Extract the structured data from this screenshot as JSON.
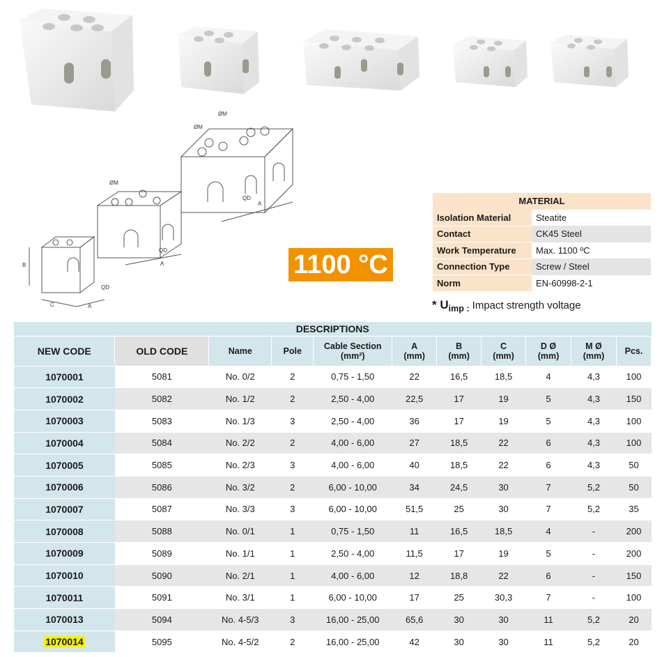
{
  "temperature_badge": "1100 °C",
  "diagram_labels": {
    "m": "ØM",
    "b": "B",
    "c": "C",
    "a": "A",
    "qd": "QD"
  },
  "material": {
    "title": "MATERIAL",
    "rows": [
      {
        "k": "Isolation Material",
        "v": "Steatite"
      },
      {
        "k": "Contact",
        "v": "CK45 Steel"
      },
      {
        "k": "Work Temperature",
        "v": "Max. 1100 ºC"
      },
      {
        "k": "Connection Type",
        "v": "Screw / Steel"
      },
      {
        "k": "Norm",
        "v": "EN-60998-2-1"
      }
    ]
  },
  "note": {
    "star": "* U",
    "sub": "imp :",
    "text": " Impact strength voltage"
  },
  "table": {
    "title": "DESCRIPTIONS",
    "headers": [
      "NEW CODE",
      "OLD CODE",
      "Name",
      "Pole",
      "Cable Section",
      "A",
      "B",
      "C",
      "D Ø",
      "M Ø",
      "Pcs."
    ],
    "subheaders": [
      "",
      "",
      "",
      "",
      "(mm²)",
      "(mm)",
      "(mm)",
      "(mm)",
      "(mm)",
      "(mm)",
      ""
    ],
    "highlight_color": "#f4f20a",
    "rows": [
      [
        "1070001",
        "5081",
        "No. 0/2",
        "2",
        "0,75 - 1,50",
        "22",
        "16,5",
        "18,5",
        "4",
        "4,3",
        "100"
      ],
      [
        "1070002",
        "5082",
        "No. 1/2",
        "2",
        "2,50 - 4,00",
        "22,5",
        "17",
        "19",
        "5",
        "4,3",
        "150"
      ],
      [
        "1070003",
        "5083",
        "No. 1/3",
        "3",
        "2,50 - 4,00",
        "36",
        "17",
        "19",
        "5",
        "4,3",
        "100"
      ],
      [
        "1070004",
        "5084",
        "No. 2/2",
        "2",
        "4,00 - 6,00",
        "27",
        "18,5",
        "22",
        "6",
        "4,3",
        "100"
      ],
      [
        "1070005",
        "5085",
        "No. 2/3",
        "3",
        "4,00 - 6,00",
        "40",
        "18,5",
        "22",
        "6",
        "4,3",
        "50"
      ],
      [
        "1070006",
        "5086",
        "No. 3/2",
        "2",
        "6,00 - 10,00",
        "34",
        "24,5",
        "30",
        "7",
        "5,2",
        "50"
      ],
      [
        "1070007",
        "5087",
        "No. 3/3",
        "3",
        "6,00 - 10,00",
        "51,5",
        "25",
        "30",
        "7",
        "5,2",
        "35"
      ],
      [
        "1070008",
        "5088",
        "No. 0/1",
        "1",
        "0,75 - 1,50",
        "11",
        "16,5",
        "18,5",
        "4",
        "-",
        "200"
      ],
      [
        "1070009",
        "5089",
        "No. 1/1",
        "1",
        "2,50 - 4,00",
        "11,5",
        "17",
        "19",
        "5",
        "-",
        "200"
      ],
      [
        "1070010",
        "5090",
        "No. 2/1",
        "1",
        "4,00 - 6,00",
        "12",
        "18,8",
        "22",
        "6",
        "-",
        "150"
      ],
      [
        "1070011",
        "5091",
        "No. 3/1",
        "1",
        "6,00 - 10,00",
        "17",
        "25",
        "30,3",
        "7",
        "-",
        "100"
      ],
      [
        "1070013",
        "5094",
        "No. 4-5/3",
        "3",
        "16,00 - 25,00",
        "65,6",
        "30",
        "30",
        "11",
        "5,2",
        "20"
      ],
      [
        "1070014",
        "5095",
        "No. 4-5/2",
        "2",
        "16,00 - 25,00",
        "42",
        "30",
        "30",
        "11",
        "5,2",
        "20"
      ]
    ]
  }
}
